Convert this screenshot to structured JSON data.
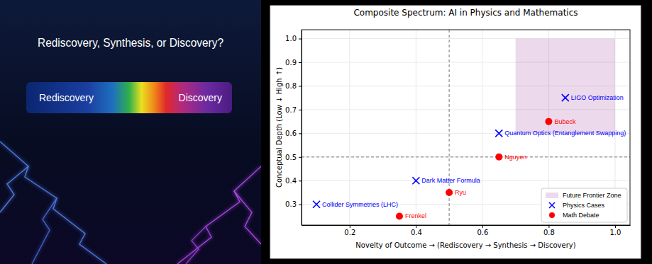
{
  "banner": {
    "title": "Rediscovery, Synthesis, or Discovery?",
    "spectrum_labels": [
      "Rediscovery",
      "Discovery"
    ]
  },
  "chart_data": {
    "type": "scatter",
    "title": "Composite Spectrum: AI in Physics and Mathematics",
    "x_label": "Novelty of Outcome → (Rediscovery → Synthesis → Discovery)",
    "y_label": "Conceptual Depth (Low ↓ High ↑)",
    "xlim": [
      0.055,
      1.045
    ],
    "ylim": [
      0.2125,
      1.0375
    ],
    "xticks": [
      0.2,
      0.4,
      0.6,
      0.8,
      {
        "value": 1,
        "label": "1.0"
      }
    ],
    "yticks": [
      0.3,
      0.4,
      0.5,
      0.6,
      0.7,
      0.8,
      0.9,
      {
        "value": 1,
        "label": "1.0"
      }
    ],
    "grid": true,
    "legend": "lower right",
    "regions": [
      {
        "name": "Future Frontier Zone",
        "color": "#800080",
        "xlim": [
          0.7,
          1.0
        ],
        "ylim": [
          0.6,
          1.0
        ]
      }
    ],
    "reference_lines": [
      {
        "axis": "x",
        "value": 0.5
      },
      {
        "axis": "y",
        "value": 0.5
      }
    ],
    "series": [
      {
        "name": "Physics Cases",
        "color": "#0000ff",
        "marker": "x",
        "labels": [
          "LIGO Optimization",
          "Quantum Optics (Entanglement Swapping)",
          "Dark Matter Formula",
          "Collider Symmetries (LHC)"
        ],
        "x": [
          0.85,
          0.65,
          0.4,
          0.1
        ],
        "values": [
          0.75,
          0.6,
          0.4,
          0.3
        ]
      },
      {
        "name": "Math Debate",
        "color": "#ff0000",
        "marker": "circle",
        "labels": [
          "Bubeck",
          "Nguyen",
          "Ryu",
          "Frenkel"
        ],
        "x": [
          0.8,
          0.65,
          0.5,
          0.35
        ],
        "values": [
          0.65,
          0.5,
          0.35,
          0.25
        ]
      }
    ]
  }
}
